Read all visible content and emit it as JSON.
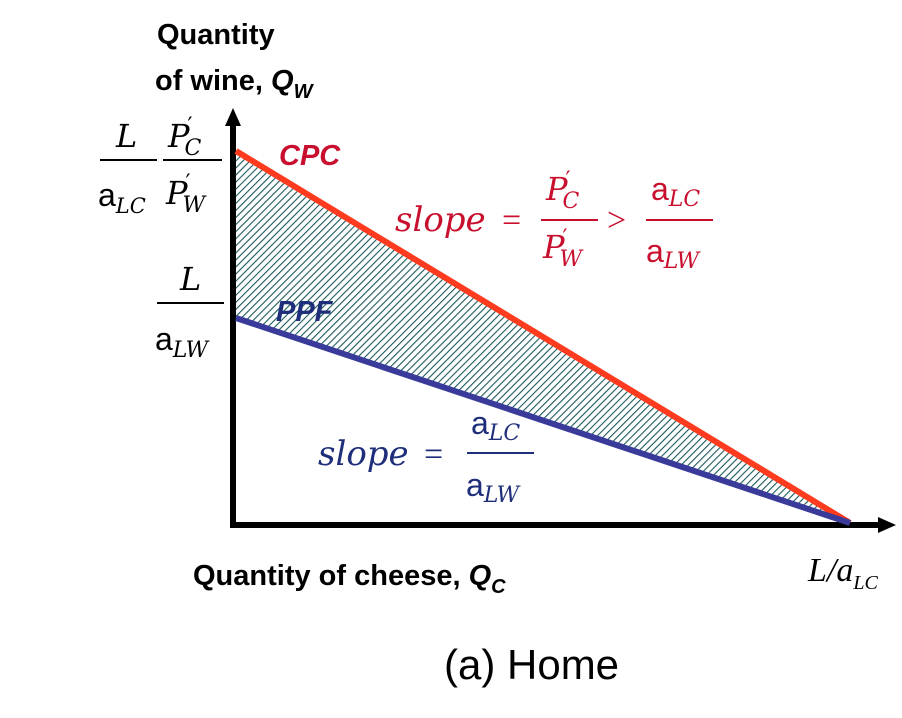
{
  "axes": {
    "y_title_line1": "Quantity",
    "y_title_line2": "of wine, ",
    "y_title_var": "Q",
    "y_title_sub": "W",
    "x_title": "Quantity of cheese, ",
    "x_title_var": "Q",
    "x_title_sub": "C",
    "x_intercept_label": "L/a",
    "x_intercept_sub": "LC"
  },
  "y_ticks": {
    "top_numer_L": "L",
    "top_denom_a": "a",
    "top_denom_sub": "LC",
    "top_price_numer": "P",
    "top_price_numer_sub": "C",
    "top_price_denom": "P",
    "top_price_denom_sub": "W",
    "prime": "′",
    "mid_numer_L": "L",
    "mid_denom_a": "a",
    "mid_denom_sub": "LW"
  },
  "curves": {
    "cpc_label": "CPC",
    "ppf_label": "PPF",
    "cpc_color": "#ff3b1f",
    "ppf_color": "#3a3a9a",
    "cpc_text_color": "#c8102e",
    "ppf_text_color": "#1f2e7a"
  },
  "annotations": {
    "cpc_slope_word": "slope",
    "eq": "=",
    "gt": ">",
    "cpc_numer": "P",
    "cpc_numer_sub": "C",
    "cpc_denom": "P",
    "cpc_denom_sub": "W",
    "prime": "′",
    "cpc_rhs_numer": "a",
    "cpc_rhs_numer_sub": "LC",
    "cpc_rhs_denom": "a",
    "cpc_rhs_denom_sub": "LW",
    "ppf_slope_word": "slope",
    "ppf_numer": "a",
    "ppf_numer_sub": "LC",
    "ppf_denom": "a",
    "ppf_denom_sub": "LW"
  },
  "caption": "(a) Home"
}
